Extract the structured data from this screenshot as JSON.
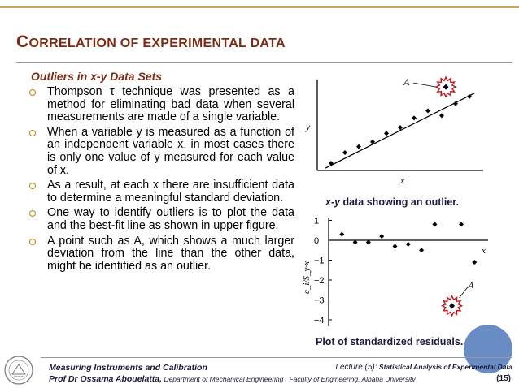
{
  "title": {
    "first_letter": "C",
    "rest": "ORRELATION OF EXPERIMENTAL DATA"
  },
  "subtitle": "Outliers in x-y Data Sets",
  "bullets": [
    "Thompson τ technique was presented as a method for eliminating bad data when several measurements are made of a single variable.",
    "When a variable y is measured as a function of an independent variable x, in most cases there is only one value of y measured for each value of x.",
    "As a result, at each x there are insufficient data to determine a meaningful standard deviation.",
    "One way to identify outliers is to plot the data and the best-fit line as shown in upper figure.",
    "A point such as A, which shows a much larger deviation from the line than the other data, might be identified as an outlier."
  ],
  "figure_top": {
    "caption_italic": "x-y",
    "caption_rest": " data showing an outlier.",
    "point_label": "A",
    "x_label": "x",
    "y_label": "y",
    "points": [
      [
        1,
        0.6
      ],
      [
        2,
        1.5
      ],
      [
        3,
        2.0
      ],
      [
        4,
        2.4
      ],
      [
        5,
        3.1
      ],
      [
        6,
        3.6
      ],
      [
        7,
        4.4
      ],
      [
        8,
        5.0
      ],
      [
        9,
        4.6
      ],
      [
        10,
        5.6
      ],
      [
        11,
        6.2
      ]
    ],
    "outlier": [
      9.3,
      7.0
    ],
    "fit": [
      [
        0.6,
        0.2
      ],
      [
        11.4,
        6.5
      ]
    ]
  },
  "figure_bottom": {
    "caption": "Plot of standardized residuals.",
    "point_label": "A",
    "x_label": "x",
    "y_label": "e_i/S_y·x",
    "ticks": [
      "1",
      "0",
      "−1",
      "−2",
      "−3",
      "−4"
    ],
    "residuals": [
      [
        1,
        0.3
      ],
      [
        2,
        -0.1
      ],
      [
        3,
        -0.1
      ],
      [
        4,
        0.2
      ],
      [
        5,
        -0.3
      ],
      [
        6,
        -0.2
      ],
      [
        7,
        -0.5
      ],
      [
        8,
        0.8
      ],
      [
        10,
        0.8
      ],
      [
        11,
        -1.1
      ]
    ],
    "outlier": [
      9.3,
      -3.3
    ]
  },
  "footer": {
    "course": "Measuring Instruments and Calibration",
    "author": "Prof Dr Ossama Abouelatta,",
    "department": " Department of Mechanical Engineering , Faculty of Engineering, Albaha University",
    "lecture": "Lecture (5):",
    "lecture_title": " Statistical Analysis of Experimental Data",
    "page": "(15)"
  },
  "colors": {
    "title": "#7a2b12",
    "bullet": "#b8860b",
    "outlier": "#c0181c",
    "accent": "#5a7fbf"
  }
}
